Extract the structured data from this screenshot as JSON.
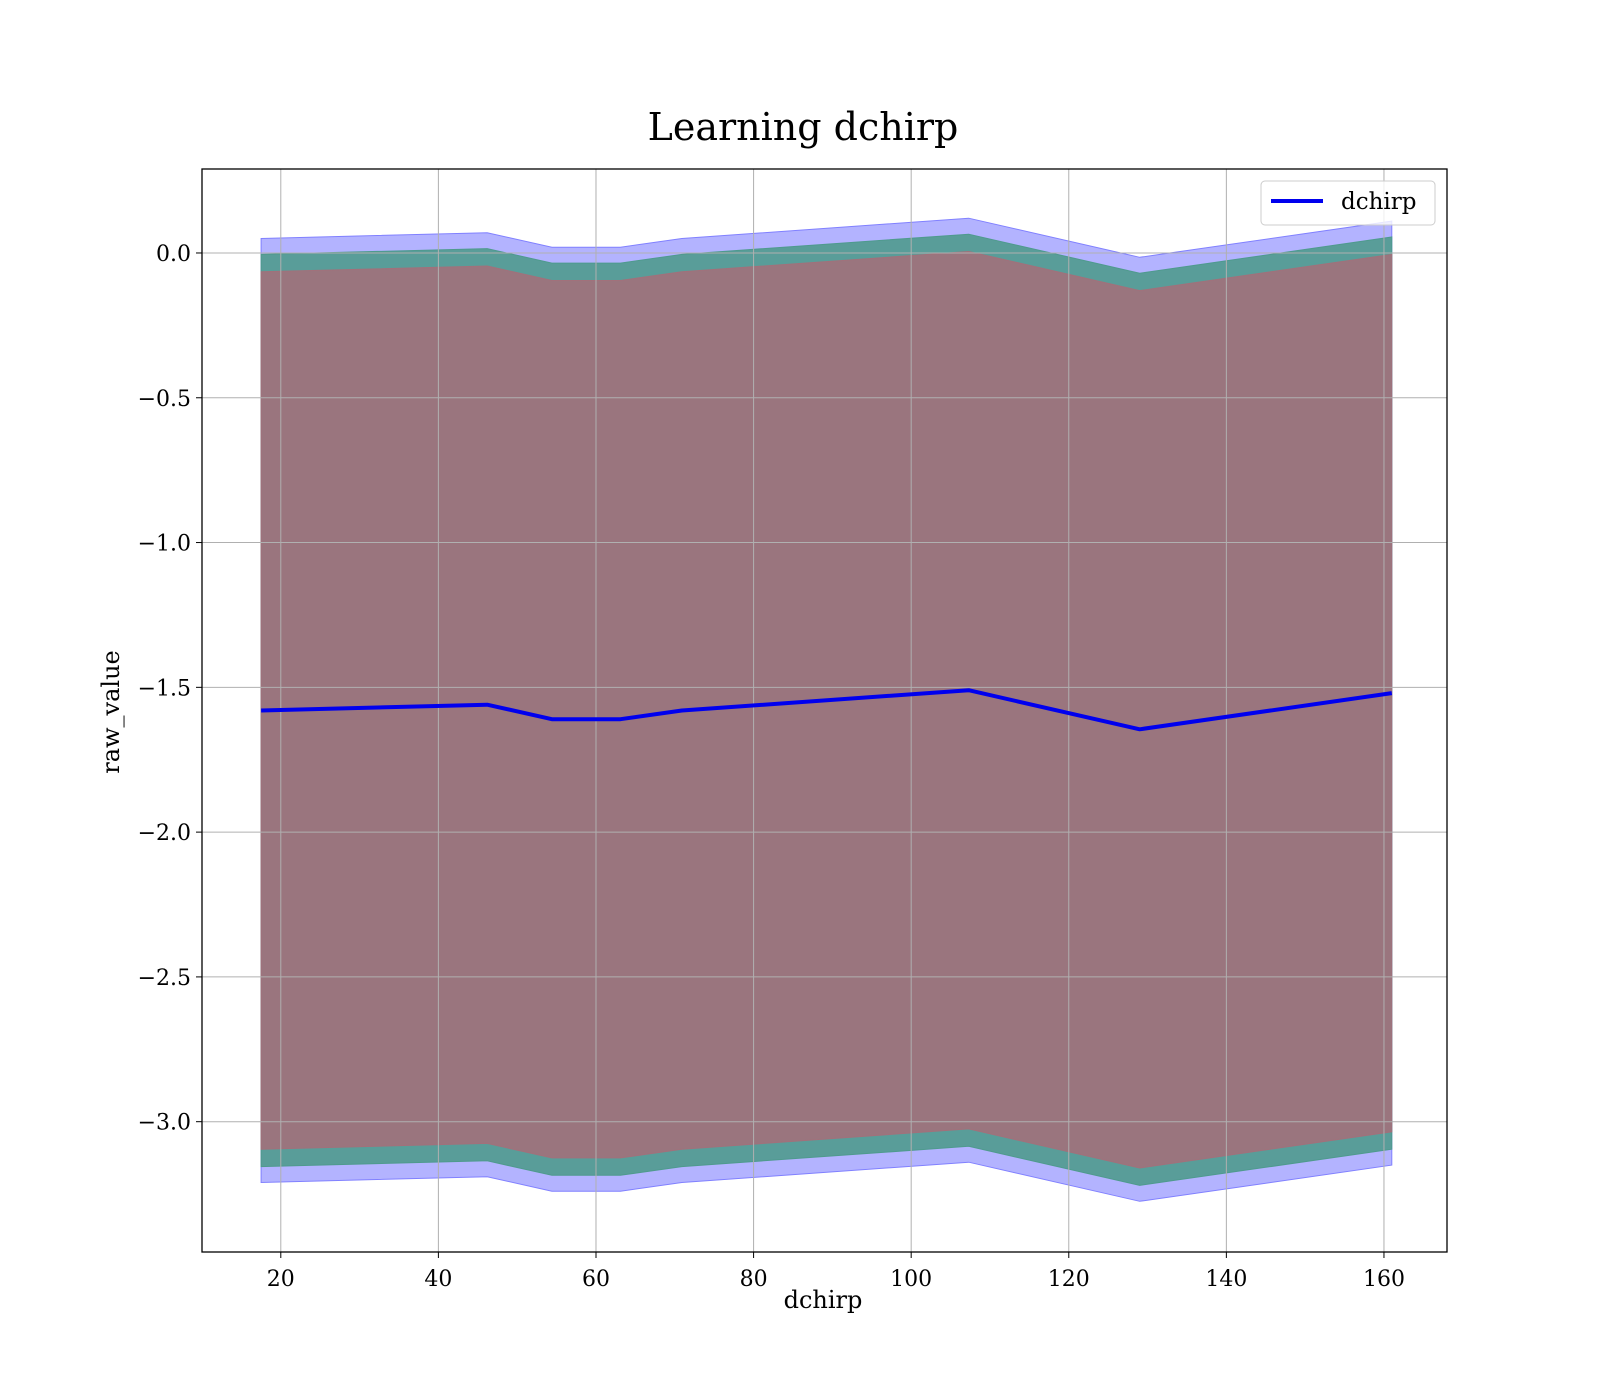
{
  "chart_data": {
    "type": "line",
    "title": "Learning dchirp",
    "xlabel": "dchirp",
    "ylabel": "raw_value",
    "xlim": [
      10,
      168
    ],
    "ylim": [
      -3.45,
      0.29
    ],
    "xticks": [
      20,
      40,
      60,
      80,
      100,
      120,
      140,
      160
    ],
    "yticks": [
      0.0,
      -0.5,
      -1.0,
      -1.5,
      -2.0,
      -2.5,
      -3.0
    ],
    "ytick_labels": [
      "0.0",
      "−0.5",
      "−1.0",
      "−1.5",
      "−2.0",
      "−2.5",
      "−3.0"
    ],
    "grid": true,
    "legend_position": "top-right",
    "x": [
      17.5,
      46.2,
      54.4,
      63.1,
      70.9,
      107.3,
      129.0,
      161.0
    ],
    "series": [
      {
        "name": "dchirp",
        "color": "#0000ee",
        "values": [
          -1.58,
          -1.56,
          -1.61,
          -1.61,
          -1.58,
          -1.51,
          -1.645,
          -1.52
        ]
      }
    ],
    "bands": [
      {
        "color": "#8080ff",
        "lower": [
          -3.21,
          -3.19,
          -3.24,
          -3.24,
          -3.21,
          -3.14,
          -3.275,
          -3.15
        ],
        "upper": [
          0.05,
          0.07,
          0.02,
          0.02,
          0.05,
          0.12,
          -0.015,
          0.11
        ]
      },
      {
        "color": "#4f9a8e",
        "lower": [
          -3.155,
          -3.135,
          -3.185,
          -3.185,
          -3.155,
          -3.085,
          -3.22,
          -3.095
        ],
        "upper": [
          -0.005,
          0.015,
          -0.035,
          -0.035,
          -0.005,
          0.065,
          -0.07,
          0.055
        ]
      },
      {
        "color": "#a1717b",
        "lower": [
          -3.095,
          -3.075,
          -3.125,
          -3.125,
          -3.095,
          -3.025,
          -3.16,
          -3.035
        ],
        "upper": [
          -0.065,
          -0.045,
          -0.095,
          -0.095,
          -0.065,
          0.005,
          -0.13,
          -0.005
        ]
      }
    ]
  }
}
